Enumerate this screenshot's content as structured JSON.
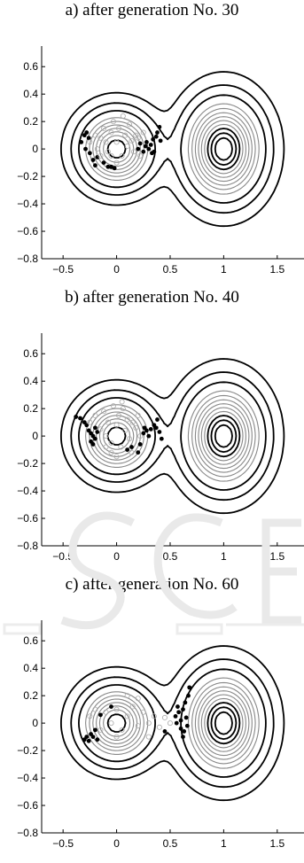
{
  "chart_data": [
    {
      "type": "scatter",
      "title": "a) after generation No. 30",
      "xlabel": "",
      "ylabel": "",
      "xlim": [
        -0.7,
        1.75
      ],
      "ylim": [
        -0.8,
        0.75
      ],
      "xticks": [
        -0.5,
        0,
        0.5,
        1,
        1.5
      ],
      "xtick_labels": [
        "−0.5",
        "0",
        "0.5",
        "1",
        "1.5"
      ],
      "yticks": [
        0.6,
        0.4,
        0.2,
        0,
        -0.2,
        -0.4,
        -0.6,
        -0.8
      ],
      "ytick_labels": [
        "0.6",
        "0.4",
        "0.2",
        "0",
        "−0.2",
        "−0.4",
        "−0.6",
        "−0.8"
      ],
      "grid": false,
      "series": [
        {
          "marker": "filled-dot",
          "points": [
            [
              -0.33,
              0.05
            ],
            [
              -0.3,
              0.1
            ],
            [
              -0.28,
              0.12
            ],
            [
              -0.26,
              0.08
            ],
            [
              -0.29,
              0.0
            ],
            [
              -0.25,
              -0.03
            ],
            [
              -0.22,
              -0.08
            ],
            [
              -0.2,
              -0.12
            ],
            [
              -0.18,
              -0.06
            ],
            [
              -0.12,
              -0.1
            ],
            [
              -0.08,
              -0.13
            ],
            [
              -0.05,
              -0.13
            ],
            [
              -0.02,
              -0.14
            ],
            [
              0.2,
              0.0
            ],
            [
              0.22,
              0.04
            ],
            [
              0.25,
              -0.02
            ],
            [
              0.28,
              0.05
            ],
            [
              0.3,
              0.0
            ],
            [
              0.32,
              0.03
            ],
            [
              0.34,
              0.07
            ],
            [
              0.35,
              -0.02
            ],
            [
              0.37,
              0.09
            ],
            [
              0.38,
              0.12
            ],
            [
              0.4,
              0.16
            ],
            [
              0.41,
              0.06
            ],
            [
              0.33,
              -0.03
            ],
            [
              0.27,
              0.02
            ]
          ]
        },
        {
          "marker": "hollow-circle",
          "points": [
            [
              -0.25,
              0.05
            ],
            [
              -0.2,
              0.1
            ],
            [
              -0.18,
              0.0
            ],
            [
              -0.15,
              0.08
            ],
            [
              -0.12,
              0.15
            ],
            [
              -0.1,
              0.05
            ],
            [
              -0.08,
              -0.02
            ],
            [
              -0.05,
              0.12
            ],
            [
              -0.03,
              0.2
            ],
            [
              0.0,
              0.05
            ],
            [
              0.02,
              0.15
            ],
            [
              0.05,
              -0.05
            ],
            [
              0.08,
              0.1
            ],
            [
              0.1,
              0.02
            ],
            [
              0.12,
              0.18
            ],
            [
              0.14,
              0.06
            ],
            [
              0.16,
              -0.02
            ],
            [
              0.18,
              0.1
            ],
            [
              0.2,
              0.08
            ],
            [
              0.22,
              -0.05
            ],
            [
              -0.05,
              -0.05
            ],
            [
              0.0,
              -0.1
            ],
            [
              -0.15,
              -0.05
            ],
            [
              0.06,
              0.24
            ],
            [
              0.25,
              0.12
            ]
          ]
        }
      ]
    },
    {
      "type": "scatter",
      "title": "b) after generation No. 40",
      "xlabel": "",
      "ylabel": "",
      "xlim": [
        -0.7,
        1.75
      ],
      "ylim": [
        -0.8,
        0.75
      ],
      "xticks": [
        -0.5,
        0,
        0.5,
        1,
        1.5
      ],
      "xtick_labels": [
        "−0.5",
        "0",
        "0.5",
        "1",
        "1.5"
      ],
      "yticks": [
        0.6,
        0.4,
        0.2,
        0,
        -0.2,
        -0.4,
        -0.6,
        -0.8
      ],
      "ytick_labels": [
        "0.6",
        "0.4",
        "0.2",
        "0",
        "−0.2",
        "−0.4",
        "−0.6",
        "−0.8"
      ],
      "grid": false,
      "series": [
        {
          "marker": "filled-dot",
          "points": [
            [
              -0.38,
              0.14
            ],
            [
              -0.34,
              0.13
            ],
            [
              -0.3,
              0.1
            ],
            [
              -0.28,
              0.08
            ],
            [
              -0.26,
              0.04
            ],
            [
              -0.24,
              0.02
            ],
            [
              -0.22,
              0.0
            ],
            [
              -0.2,
              -0.02
            ],
            [
              -0.24,
              -0.04
            ],
            [
              -0.22,
              -0.06
            ],
            [
              -0.2,
              0.06
            ],
            [
              -0.18,
              0.03
            ],
            [
              0.1,
              -0.1
            ],
            [
              0.14,
              -0.08
            ],
            [
              0.2,
              -0.12
            ],
            [
              0.22,
              -0.06
            ],
            [
              0.25,
              0.02
            ],
            [
              0.28,
              0.04
            ],
            [
              0.3,
              0.0
            ],
            [
              0.32,
              0.05
            ],
            [
              0.35,
              0.08
            ],
            [
              0.37,
              0.06
            ],
            [
              0.38,
              0.12
            ],
            [
              0.4,
              0.03
            ],
            [
              0.42,
              -0.02
            ],
            [
              0.26,
              0.06
            ]
          ]
        },
        {
          "marker": "hollow-circle",
          "points": [
            [
              -0.25,
              0.1
            ],
            [
              -0.2,
              0.15
            ],
            [
              -0.15,
              0.05
            ],
            [
              -0.12,
              0.18
            ],
            [
              -0.1,
              0.0
            ],
            [
              -0.08,
              0.1
            ],
            [
              -0.05,
              -0.05
            ],
            [
              -0.03,
              0.22
            ],
            [
              0.0,
              0.08
            ],
            [
              0.02,
              0.15
            ],
            [
              0.04,
              -0.08
            ],
            [
              0.06,
              0.2
            ],
            [
              0.08,
              0.04
            ],
            [
              0.1,
              0.12
            ],
            [
              0.12,
              -0.02
            ],
            [
              0.15,
              0.1
            ],
            [
              0.18,
              0.06
            ],
            [
              0.2,
              0.15
            ],
            [
              0.22,
              0.0
            ],
            [
              -0.05,
              -0.12
            ],
            [
              0.0,
              -0.15
            ],
            [
              -0.1,
              -0.08
            ],
            [
              0.05,
              0.25
            ],
            [
              0.14,
              -0.12
            ]
          ]
        }
      ]
    },
    {
      "type": "scatter",
      "title": "c) after generation No. 60",
      "xlabel": "",
      "ylabel": "",
      "xlim": [
        -0.7,
        1.75
      ],
      "ylim": [
        -0.8,
        0.75
      ],
      "xticks": [
        -0.5,
        0,
        0.5,
        1,
        1.5
      ],
      "xtick_labels": [
        "−0.5",
        "0",
        "0.5",
        "1",
        "1.5"
      ],
      "yticks": [
        0.6,
        0.4,
        0.2,
        0,
        -0.2,
        -0.4,
        -0.6,
        -0.8
      ],
      "ytick_labels": [
        "0.6",
        "0.4",
        "0.2",
        "0",
        "−0.2",
        "−0.4",
        "−0.6",
        "−0.8"
      ],
      "grid": false,
      "series": [
        {
          "marker": "filled-dot",
          "points": [
            [
              -0.3,
              -0.12
            ],
            [
              -0.28,
              -0.1
            ],
            [
              -0.26,
              -0.13
            ],
            [
              -0.24,
              -0.08
            ],
            [
              -0.22,
              -0.1
            ],
            [
              -0.2,
              -0.05
            ],
            [
              -0.18,
              -0.12
            ],
            [
              -0.15,
              0.06
            ],
            [
              -0.05,
              0.12
            ],
            [
              0.55,
              0.05
            ],
            [
              0.56,
              0.0
            ],
            [
              0.58,
              0.08
            ],
            [
              0.6,
              0.02
            ],
            [
              0.6,
              -0.04
            ],
            [
              0.62,
              0.1
            ],
            [
              0.63,
              -0.06
            ],
            [
              0.64,
              0.15
            ],
            [
              0.65,
              0.04
            ],
            [
              0.66,
              -0.02
            ],
            [
              0.67,
              0.2
            ],
            [
              0.68,
              0.26
            ],
            [
              0.62,
              -0.1
            ],
            [
              0.57,
              0.12
            ],
            [
              0.45,
              -0.06
            ]
          ]
        },
        {
          "marker": "hollow-circle",
          "points": [
            [
              -0.25,
              0.05
            ],
            [
              -0.2,
              0.1
            ],
            [
              -0.15,
              -0.05
            ],
            [
              -0.1,
              0.08
            ],
            [
              -0.05,
              0.0
            ],
            [
              0.0,
              0.1
            ],
            [
              0.05,
              -0.05
            ],
            [
              0.1,
              0.05
            ],
            [
              0.15,
              0.12
            ],
            [
              0.2,
              -0.02
            ],
            [
              0.25,
              0.08
            ],
            [
              0.3,
              0.0
            ],
            [
              0.35,
              0.05
            ],
            [
              0.4,
              -0.03
            ],
            [
              0.45,
              0.04
            ],
            [
              0.5,
              0.0
            ],
            [
              0.1,
              0.2
            ],
            [
              0.0,
              -0.1
            ],
            [
              0.2,
              0.18
            ],
            [
              0.3,
              -0.1
            ]
          ]
        }
      ]
    }
  ]
}
